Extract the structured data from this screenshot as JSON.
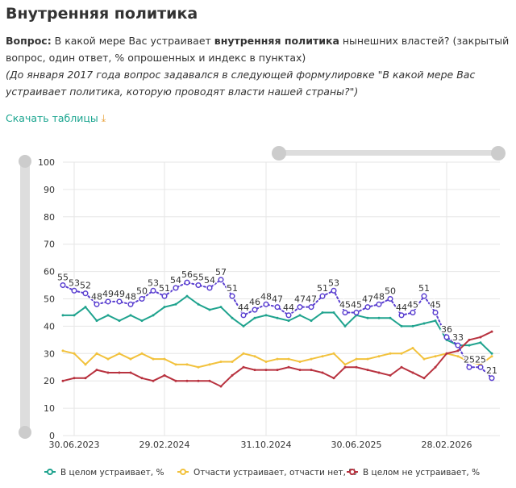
{
  "header": {
    "title": "Внутренняя политика",
    "q_label": "Вопрос:",
    "q_text1": " В какой мере Вас устраивает ",
    "q_bold": "внутренняя политика",
    "q_text2": " нынешних властей? (закрытый вопрос, один ответ, % опрошенных и индекс в пунктах)",
    "note": "(До января 2017 года вопрос задавался в следующей формулировке \"В какой мере Вас устраивает политика, которую проводят власти нашей страны?\")",
    "download": "Скачать таблицы"
  },
  "chart_data": {
    "type": "line",
    "categories": [
      null,
      "30.06.2023",
      null,
      null,
      null,
      null,
      null,
      null,
      null,
      "29.02.2024",
      null,
      null,
      null,
      null,
      null,
      null,
      null,
      null,
      "31.10.2024",
      null,
      null,
      null,
      null,
      null,
      null,
      null,
      "30.06.2025",
      null,
      null,
      null,
      null,
      null,
      null,
      null,
      "28.02.2026",
      null,
      null,
      null,
      null
    ],
    "ylim": [
      0,
      100
    ],
    "yticks": [
      0,
      10,
      20,
      30,
      40,
      50,
      60,
      70,
      80,
      90,
      100
    ],
    "grid": true,
    "series": [
      {
        "name": "В целом устраивает, %",
        "color": "#1fa38e",
        "values": [
          44,
          44,
          47,
          42,
          44,
          42,
          44,
          42,
          44,
          47,
          48,
          51,
          48,
          46,
          47,
          43,
          40,
          43,
          44,
          43,
          42,
          44,
          42,
          45,
          45,
          40,
          44,
          43,
          43,
          43,
          40,
          40,
          41,
          42,
          35,
          33,
          33,
          34,
          30
        ]
      },
      {
        "name": "Отчасти устраивает, отчасти нет, %",
        "color": "#f2c23d",
        "values": [
          31,
          30,
          26,
          30,
          28,
          30,
          28,
          30,
          28,
          28,
          26,
          26,
          25,
          26,
          27,
          27,
          30,
          29,
          27,
          28,
          28,
          27,
          28,
          29,
          30,
          26,
          28,
          28,
          29,
          30,
          30,
          32,
          28,
          29,
          30,
          29,
          27,
          26,
          29
        ]
      },
      {
        "name": "В целом не устраивает, %",
        "color": "#b8323f",
        "values": [
          20,
          21,
          21,
          24,
          23,
          23,
          23,
          21,
          20,
          22,
          20,
          20,
          20,
          20,
          18,
          22,
          25,
          24,
          24,
          24,
          25,
          24,
          24,
          23,
          21,
          25,
          25,
          24,
          23,
          22,
          25,
          23,
          21,
          25,
          30,
          31,
          35,
          36,
          38
        ]
      },
      {
        "color": "#5a3fd0",
        "dotted": true,
        "labels": true,
        "values": [
          55,
          53,
          52,
          48,
          49,
          49,
          48,
          50,
          53,
          51,
          54,
          56,
          55,
          54,
          57,
          51,
          44,
          46,
          48,
          47,
          44,
          47,
          47,
          51,
          53,
          45,
          45,
          47,
          48,
          50,
          44,
          45,
          51,
          45,
          36,
          33,
          25,
          25,
          21
        ]
      }
    ]
  }
}
